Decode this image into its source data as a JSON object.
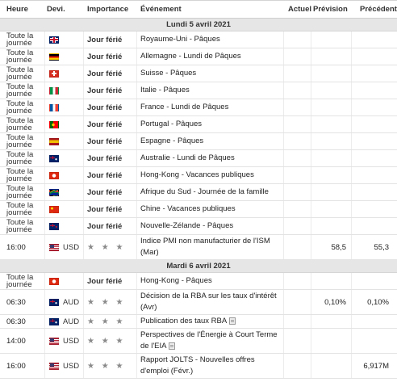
{
  "header": {
    "time": "Heure",
    "currency": "Devi.",
    "importance": "Importance",
    "event": "Événement",
    "actual": "Actuel",
    "forecast": "Prévision",
    "previous": "Précédent"
  },
  "days": [
    {
      "label": "Lundi 5 avril 2021",
      "rows": [
        {
          "time": "Toute la journée",
          "flag": "gb",
          "currency": "",
          "importance": "Jour férié",
          "event": "Royaume-Uni - Pâques",
          "actual": "",
          "forecast": "",
          "previous": "",
          "height": 21
        },
        {
          "time": "Toute la journée",
          "flag": "de",
          "currency": "",
          "importance": "Jour férié",
          "event": "Allemagne - Lundi de Pâques",
          "actual": "",
          "forecast": "",
          "previous": "",
          "height": 21
        },
        {
          "time": "Toute la journée",
          "flag": "ch",
          "currency": "",
          "importance": "Jour férié",
          "event": "Suisse - Pâques",
          "actual": "",
          "forecast": "",
          "previous": "",
          "height": 21
        },
        {
          "time": "Toute la journée",
          "flag": "it",
          "currency": "",
          "importance": "Jour férié",
          "event": "Italie - Pâques",
          "actual": "",
          "forecast": "",
          "previous": "",
          "height": 21
        },
        {
          "time": "Toute la journée",
          "flag": "fr",
          "currency": "",
          "importance": "Jour férié",
          "event": "France - Lundi de Pâques",
          "actual": "",
          "forecast": "",
          "previous": "",
          "height": 21
        },
        {
          "time": "Toute la journée",
          "flag": "pt",
          "currency": "",
          "importance": "Jour férié",
          "event": "Portugal - Pâques",
          "actual": "",
          "forecast": "",
          "previous": "",
          "height": 21
        },
        {
          "time": "Toute la journée",
          "flag": "es",
          "currency": "",
          "importance": "Jour férié",
          "event": "Espagne - Pâques",
          "actual": "",
          "forecast": "",
          "previous": "",
          "height": 21
        },
        {
          "time": "Toute la journée",
          "flag": "au",
          "currency": "",
          "importance": "Jour férié",
          "event": "Australie - Lundi de Pâques",
          "actual": "",
          "forecast": "",
          "previous": "",
          "height": 21
        },
        {
          "time": "Toute la journée",
          "flag": "hk",
          "currency": "",
          "importance": "Jour férié",
          "event": "Hong-Kong - Vacances publiques",
          "actual": "",
          "forecast": "",
          "previous": "",
          "height": 21
        },
        {
          "time": "Toute la journée",
          "flag": "za",
          "currency": "",
          "importance": "Jour férié",
          "event": "Afrique du Sud - Journée de la famille",
          "actual": "",
          "forecast": "",
          "previous": "",
          "height": 21
        },
        {
          "time": "Toute la journée",
          "flag": "cn",
          "currency": "",
          "importance": "Jour férié",
          "event": "Chine - Vacances publiques",
          "actual": "",
          "forecast": "",
          "previous": "",
          "height": 21
        },
        {
          "time": "Toute la journée",
          "flag": "nz",
          "currency": "",
          "importance": "Jour férié",
          "event": "Nouvelle-Zélande - Pâques",
          "actual": "",
          "forecast": "",
          "previous": "",
          "height": 21
        },
        {
          "time": "16:00",
          "flag": "us",
          "currency": "USD",
          "importance": "★ ★ ★",
          "event": "Indice PMI non manufacturier de l'ISM (Mar)",
          "actual": "",
          "forecast": "58,5",
          "previous": "55,3",
          "height": 31
        }
      ]
    },
    {
      "label": "Mardi 6 avril 2021",
      "rows": [
        {
          "time": "Toute la journée",
          "flag": "hk",
          "currency": "",
          "importance": "Jour férié",
          "event": "Hong-Kong - Pâques",
          "actual": "",
          "forecast": "",
          "previous": "",
          "height": 21
        },
        {
          "time": "06:30",
          "flag": "au",
          "currency": "AUD",
          "importance": "★ ★ ★",
          "event": "Décision de la RBA sur les taux d'intérêt (Avr)",
          "actual": "",
          "forecast": "0,10%",
          "previous": "0,10%",
          "height": 31
        },
        {
          "time": "06:30",
          "flag": "au",
          "currency": "AUD",
          "importance": "★ ★ ★",
          "event": "Publication des taux RBA",
          "actual": "",
          "forecast": "",
          "previous": "",
          "height": 17,
          "doc": true
        },
        {
          "time": "14:00",
          "flag": "us",
          "currency": "USD",
          "importance": "★ ★ ★",
          "event": "Perspectives de l'Énergie à Court Terme de l'EIA",
          "actual": "",
          "forecast": "",
          "previous": "",
          "height": 31,
          "doc": true
        },
        {
          "time": "16:00",
          "flag": "us",
          "currency": "USD",
          "importance": "★ ★ ★",
          "event": "Rapport JOLTS - Nouvelles offres d'emploi (Févr.)",
          "actual": "",
          "forecast": "",
          "previous": "6,917M",
          "height": 31
        }
      ]
    }
  ]
}
